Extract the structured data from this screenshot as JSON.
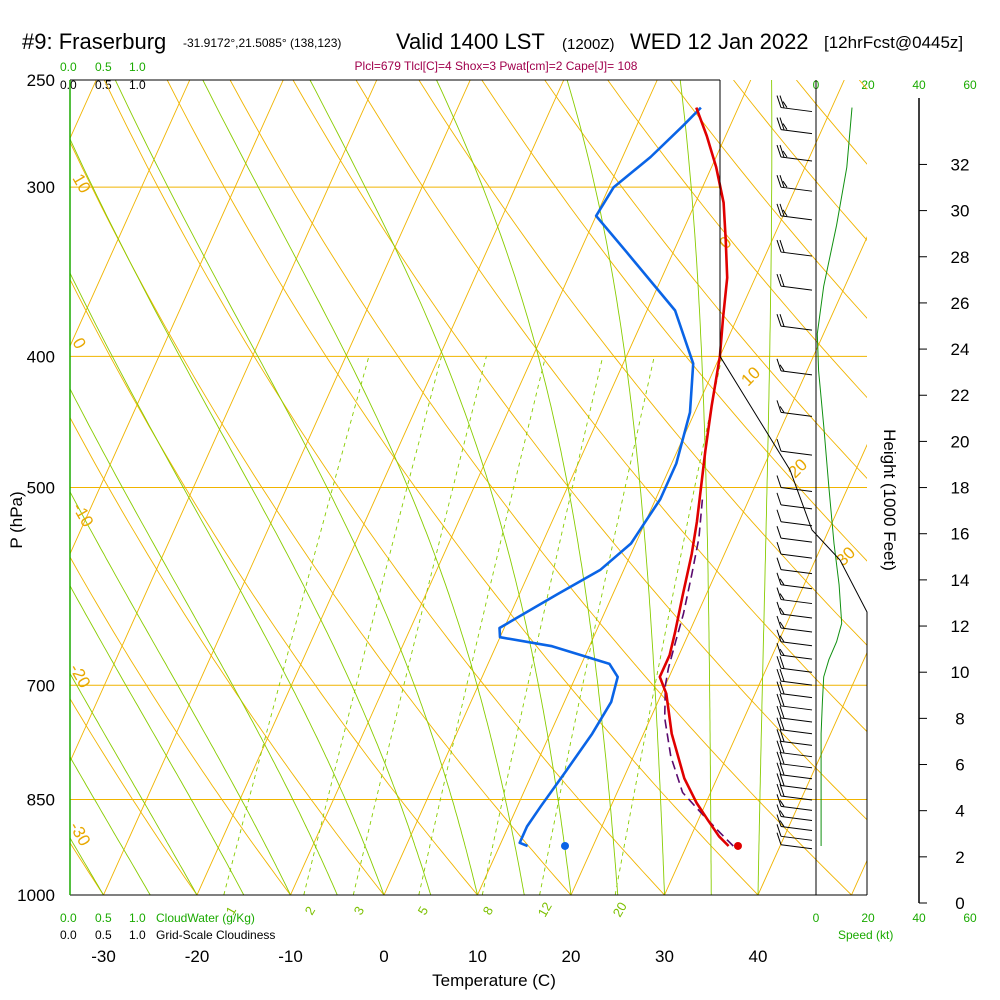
{
  "header": {
    "station": "#9: Fraserburg",
    "coords": "-31.9172°,21.5085° (138,123)",
    "valid": "Valid 1400 LST",
    "utc": "(1200Z)",
    "date": "WED 12 Jan 2022",
    "forecast": "[12hrFcst@0445z]",
    "indices": "Plcl=679 Tlcl[C]=4 Shox=3 Pwat[cm]=2 Cape[J]= 108"
  },
  "scales": {
    "cloud_top": [
      "0.0",
      "0.5",
      "1.0"
    ],
    "cloudiness_top": [
      "0.0",
      "0.5",
      "1.0"
    ],
    "cloud_bottom": [
      "0.0",
      "0.5",
      "1.0"
    ],
    "cloudiness_bottom": [
      "0.0",
      "0.5",
      "1.0"
    ],
    "cloudwater_label": "CloudWater (g/Kg)",
    "cloudiness_label": "Grid-Scale Cloudiness",
    "speed_ticks": [
      "0",
      "20",
      "40",
      "60"
    ],
    "speed_label": "Speed (kt)"
  },
  "colors": {
    "isotherm": "#f0b400",
    "dry_adiabat": "#f0b400",
    "moist_adiabat": "#88cc00",
    "mixing_ratio": "#88cc00",
    "temperature": "#e00000",
    "dewpoint": "#0a64e6",
    "parcel": "#5a0a6e",
    "speed_profile": "#109010",
    "indices": "#a0004c",
    "scale_green": "#1aaa00"
  },
  "chart_data": {
    "type": "line",
    "title": "Skew-T log-P sounding, #9: Fraserburg, Valid 1400 LST WED 12 Jan 2022",
    "xlabel": "Temperature (C)",
    "ylabel": "P (hPa)",
    "y2label": "Height (1000 Feet)",
    "xlim": [
      -35,
      45
    ],
    "ylim": [
      1000,
      250
    ],
    "x_ticks": [
      -30,
      -20,
      -10,
      0,
      10,
      20,
      30,
      40
    ],
    "p_ticks": [
      250,
      300,
      400,
      500,
      700,
      850,
      1000
    ],
    "height_ticks": [
      0,
      2,
      4,
      6,
      8,
      10,
      12,
      14,
      16,
      18,
      20,
      22,
      24,
      26,
      28,
      30,
      32
    ],
    "isotherm_labels": [
      "10",
      "0",
      "-10",
      "-20",
      "-30"
    ],
    "dry_adiabat_labels": [
      "0",
      "10",
      "20",
      "30"
    ],
    "mixing_ratio_labels": [
      "1",
      "2",
      "3",
      "5",
      "8",
      "12",
      "20"
    ],
    "series": [
      {
        "name": "Temperature",
        "points": [
          [
            34.5,
            920
          ],
          [
            33,
            905
          ],
          [
            31,
            880
          ],
          [
            29,
            855
          ],
          [
            26.5,
            820
          ],
          [
            23,
            760
          ],
          [
            20.5,
            710
          ],
          [
            19,
            690
          ],
          [
            19,
            665
          ],
          [
            18.5,
            640
          ],
          [
            17.5,
            600
          ],
          [
            16.5,
            560
          ],
          [
            15.5,
            530
          ],
          [
            14.5,
            505
          ],
          [
            13,
            470
          ],
          [
            11.5,
            435
          ],
          [
            10,
            400
          ],
          [
            8.5,
            375
          ],
          [
            7,
            350
          ],
          [
            5,
            328
          ],
          [
            3,
            308
          ],
          [
            0.5,
            290
          ],
          [
            -2,
            275
          ],
          [
            -4.5,
            262
          ]
        ]
      },
      {
        "name": "Dewpoint",
        "points": [
          [
            13,
            920
          ],
          [
            12,
            915
          ],
          [
            12,
            890
          ],
          [
            12.5,
            860
          ],
          [
            13.5,
            810
          ],
          [
            14.5,
            760
          ],
          [
            15,
            720
          ],
          [
            14.5,
            690
          ],
          [
            13,
            675
          ],
          [
            6,
            655
          ],
          [
            0,
            645
          ],
          [
            -0.5,
            635
          ],
          [
            4,
            600
          ],
          [
            7.5,
            575
          ],
          [
            9.5,
            550
          ],
          [
            10.5,
            510
          ],
          [
            10.5,
            480
          ],
          [
            9.5,
            440
          ],
          [
            7.5,
            405
          ],
          [
            3,
            370
          ],
          [
            -5,
            335
          ],
          [
            -10,
            315
          ],
          [
            -9.5,
            300
          ],
          [
            -7,
            285
          ],
          [
            -5,
            270
          ],
          [
            -4,
            262
          ]
        ]
      },
      {
        "name": "Parcel",
        "points": [
          [
            35,
            920
          ],
          [
            33,
            900
          ],
          [
            30,
            870
          ],
          [
            27,
            840
          ],
          [
            24,
            790
          ],
          [
            21.5,
            740
          ],
          [
            20,
            700
          ],
          [
            19.5,
            680
          ],
          [
            19,
            650
          ],
          [
            18.5,
            620
          ],
          [
            17.5,
            580
          ],
          [
            16.5,
            545
          ],
          [
            15,
            510
          ]
        ]
      }
    ],
    "surface_points": [
      {
        "name": "surface-temperature",
        "t": 35.5,
        "p": 920
      },
      {
        "name": "surface-dewpoint",
        "t": 17,
        "p": 920
      }
    ],
    "wind_speed_profile": {
      "xlabel": "Speed (kt)",
      "xlim": [
        0,
        60
      ],
      "points": [
        [
          2,
          920
        ],
        [
          2,
          880
        ],
        [
          2,
          820
        ],
        [
          2,
          760
        ],
        [
          2.5,
          720
        ],
        [
          3,
          690
        ],
        [
          5,
          670
        ],
        [
          8,
          650
        ],
        [
          10,
          630
        ],
        [
          9,
          590
        ],
        [
          7,
          550
        ],
        [
          5,
          500
        ],
        [
          3,
          450
        ],
        [
          1,
          410
        ],
        [
          0.5,
          385
        ],
        [
          3,
          355
        ],
        [
          8,
          320
        ],
        [
          12,
          290
        ],
        [
          14,
          262
        ]
      ]
    },
    "wind_barbs": [
      {
        "p": 918,
        "speed": 10
      },
      {
        "p": 905,
        "speed": 10
      },
      {
        "p": 890,
        "speed": 15
      },
      {
        "p": 875,
        "speed": 15
      },
      {
        "p": 860,
        "speed": 15
      },
      {
        "p": 845,
        "speed": 20
      },
      {
        "p": 830,
        "speed": 20
      },
      {
        "p": 815,
        "speed": 20
      },
      {
        "p": 800,
        "speed": 20
      },
      {
        "p": 785,
        "speed": 20
      },
      {
        "p": 770,
        "speed": 20
      },
      {
        "p": 755,
        "speed": 20
      },
      {
        "p": 740,
        "speed": 20
      },
      {
        "p": 725,
        "speed": 20
      },
      {
        "p": 710,
        "speed": 20
      },
      {
        "p": 695,
        "speed": 20
      },
      {
        "p": 680,
        "speed": 20
      },
      {
        "p": 665,
        "speed": 15
      },
      {
        "p": 650,
        "speed": 15
      },
      {
        "p": 635,
        "speed": 15
      },
      {
        "p": 620,
        "speed": 15
      },
      {
        "p": 605,
        "speed": 15
      },
      {
        "p": 590,
        "speed": 15
      },
      {
        "p": 575,
        "speed": 10
      },
      {
        "p": 560,
        "speed": 10
      },
      {
        "p": 545,
        "speed": 10
      },
      {
        "p": 530,
        "speed": 10
      },
      {
        "p": 515,
        "speed": 10
      },
      {
        "p": 500,
        "speed": 10
      },
      {
        "p": 470,
        "speed": 10
      },
      {
        "p": 440,
        "speed": 15
      },
      {
        "p": 410,
        "speed": 15
      },
      {
        "p": 380,
        "speed": 20
      },
      {
        "p": 355,
        "speed": 20
      },
      {
        "p": 335,
        "speed": 20
      },
      {
        "p": 315,
        "speed": 25
      },
      {
        "p": 300,
        "speed": 25
      },
      {
        "p": 285,
        "speed": 25
      },
      {
        "p": 272,
        "speed": 25
      },
      {
        "p": 262,
        "speed": 25
      }
    ]
  }
}
